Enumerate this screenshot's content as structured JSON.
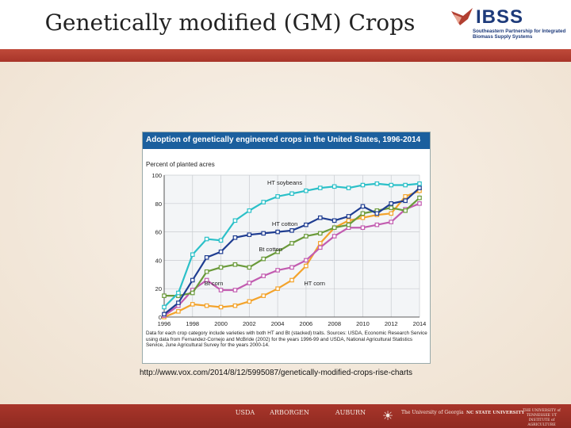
{
  "slide": {
    "title": "Genetically modified (GM) Crops",
    "source_url": "http://www.vox.com/2014/8/12/5995087/genetically-modified-crops-rise-charts"
  },
  "logo": {
    "word": "IBSS",
    "subtitle": "Southeastern Partnership for Integrated Biomass Supply Systems"
  },
  "footer": {
    "partners": [
      "USDA",
      "ARBORGEN",
      "AUBURN",
      "The University of Georgia",
      "NC STATE UNIVERSITY",
      "THE UNIVERSITY of TENNESSEE UT INSTITUTE of AGRICULTURE"
    ]
  },
  "colors": {
    "header_band": "#b23f31",
    "chart_title_bar": "#1b5f9e",
    "series": {
      "HT soybeans": "#2bc0c8",
      "HT cotton": "#1f3d91",
      "Bt cotton": "#6a9a3a",
      "Bt corn": "#c25cb0",
      "HT corn": "#f3a32b"
    }
  },
  "chart_data": {
    "type": "line",
    "title": "Adoption of genetically engineered crops in the United States, 1996-2014",
    "ylabel": "Percent of planted acres",
    "xlabel": "",
    "x": [
      1996,
      1997,
      1998,
      1999,
      2000,
      2001,
      2002,
      2003,
      2004,
      2005,
      2006,
      2007,
      2008,
      2009,
      2010,
      2011,
      2012,
      2013,
      2014
    ],
    "xticks": [
      1996,
      1998,
      2000,
      2002,
      2004,
      2006,
      2008,
      2010,
      2012,
      2014
    ],
    "yticks": [
      0,
      20,
      40,
      60,
      80,
      100
    ],
    "ylim": [
      0,
      100
    ],
    "grid": true,
    "legend": "inline labels",
    "series": [
      {
        "name": "HT soybeans",
        "values": [
          7,
          17,
          44,
          55,
          54,
          68,
          75,
          81,
          85,
          87,
          89,
          91,
          92,
          91,
          93,
          94,
          93,
          93,
          94
        ]
      },
      {
        "name": "HT cotton",
        "values": [
          2,
          10,
          26,
          42,
          46,
          56,
          58,
          59,
          60,
          61,
          65,
          70,
          68,
          71,
          78,
          73,
          80,
          82,
          91
        ]
      },
      {
        "name": "Bt cotton",
        "values": [
          15,
          15,
          17,
          32,
          35,
          37,
          35,
          41,
          46,
          52,
          57,
          59,
          63,
          65,
          73,
          75,
          77,
          75,
          84
        ]
      },
      {
        "name": "Bt corn",
        "values": [
          1,
          8,
          19,
          26,
          19,
          19,
          24,
          29,
          33,
          35,
          40,
          49,
          57,
          63,
          63,
          65,
          67,
          76,
          80
        ]
      },
      {
        "name": "HT corn",
        "values": [
          0,
          4,
          9,
          8,
          7,
          8,
          11,
          15,
          20,
          26,
          36,
          52,
          63,
          68,
          70,
          72,
          73,
          85,
          89
        ]
      }
    ],
    "annotations": [
      {
        "text": "HT soybeans",
        "x": 2004.5,
        "y": 95
      },
      {
        "text": "HT cotton",
        "x": 2004.5,
        "y": 66
      },
      {
        "text": "Bt cotton",
        "x": 2003.5,
        "y": 48
      },
      {
        "text": "Bt corn",
        "x": 1999.5,
        "y": 24
      },
      {
        "text": "HT corn",
        "x": 2006.6,
        "y": 24
      }
    ],
    "note": "Data for each crop category include varieties with both HT and Bt (stacked) traits. Sources: USDA, Economic Research Service using data from Fernandez-Cornejo and McBride (2002) for the years 1996-99 and USDA, National Agricultural Statistics Service, June Agricultural Survey for the years 2000-14."
  }
}
